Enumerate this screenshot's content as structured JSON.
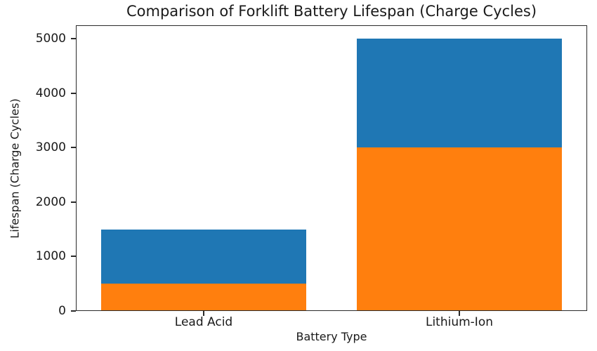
{
  "chart_data": {
    "type": "bar",
    "title": "Comparison of Forklift Battery Lifespan (Charge Cycles)",
    "xlabel": "Battery Type",
    "ylabel": "Lifespan (Charge Cycles)",
    "categories": [
      "Lead Acid",
      "Lithium-Ion"
    ],
    "series": [
      {
        "color": "#1f77b4",
        "values": [
          1500,
          5000
        ]
      },
      {
        "color": "#ff7f0e",
        "values": [
          500,
          3000
        ]
      }
    ],
    "bar_style": "overlapping-from-zero",
    "bar_width_frac": 0.8,
    "yticks": [
      0,
      1000,
      2000,
      3000,
      4000,
      5000
    ],
    "ylim": [
      0,
      5250
    ],
    "grid": false,
    "legend": "none",
    "background": "#ffffff"
  }
}
